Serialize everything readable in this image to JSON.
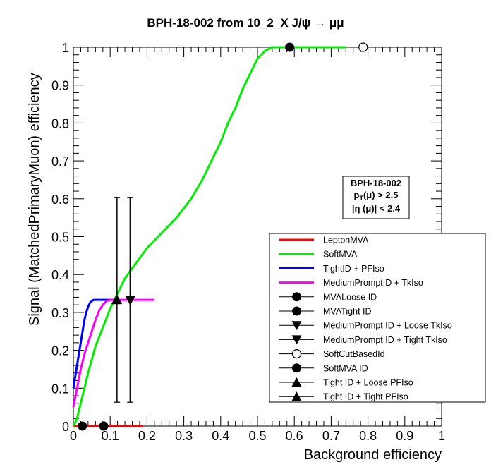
{
  "chart_data": {
    "type": "line",
    "title": "BPH-18-002 from 10_2_X J/ψ → μμ",
    "xlabel": "Background efficiency",
    "ylabel": "Signal (MatchedPrimaryMuon) efficiency",
    "xlim": [
      0,
      1
    ],
    "ylim": [
      0,
      1
    ],
    "xticks": [
      "0",
      "0.1",
      "0.2",
      "0.3",
      "0.4",
      "0.5",
      "0.6",
      "0.7",
      "0.8",
      "0.9",
      "1"
    ],
    "yticks": [
      "0",
      "0.1",
      "0.2",
      "0.3",
      "0.4",
      "0.5",
      "0.6",
      "0.7",
      "0.8",
      "0.9",
      "1"
    ],
    "grid": false,
    "legend_position": "bottom-right",
    "info_box": {
      "line1": "BPH-18-002",
      "line2_main": "p",
      "line2_sub": "T",
      "line2_rest": "(μ) > 2.5",
      "line3": "|η (μ)| < 2.4"
    },
    "series": [
      {
        "name": "LeptonMVA",
        "kind": "line",
        "color": "#ff0000",
        "x": [
          0.0,
          0.02,
          0.05,
          0.1,
          0.15,
          0.19
        ],
        "y": [
          0.0,
          0.0,
          0.0,
          0.0,
          0.0,
          0.0
        ]
      },
      {
        "name": "SoftMVA",
        "kind": "line",
        "color": "#00ee00",
        "x": [
          0.0,
          0.01,
          0.02,
          0.04,
          0.06,
          0.08,
          0.1,
          0.12,
          0.14,
          0.17,
          0.2,
          0.24,
          0.28,
          0.32,
          0.35,
          0.38,
          0.4,
          0.42,
          0.44,
          0.46,
          0.48,
          0.5,
          0.52,
          0.54,
          0.55,
          0.57,
          0.59,
          0.65,
          0.7,
          0.74
        ],
        "y": [
          0.0,
          0.02,
          0.06,
          0.14,
          0.21,
          0.26,
          0.31,
          0.35,
          0.39,
          0.43,
          0.47,
          0.51,
          0.55,
          0.6,
          0.65,
          0.71,
          0.75,
          0.8,
          0.84,
          0.89,
          0.93,
          0.97,
          0.99,
          1.0,
          1.0,
          1.0,
          1.0,
          1.0,
          1.0,
          1.0
        ]
      },
      {
        "name": "TightID + PFIso",
        "kind": "line",
        "color": "#0000ff",
        "x": [
          0.0,
          0.005,
          0.01,
          0.015,
          0.02,
          0.025,
          0.03,
          0.035,
          0.04,
          0.045,
          0.05,
          0.055,
          0.06,
          0.08,
          0.1,
          0.12
        ],
        "y": [
          0.1,
          0.13,
          0.16,
          0.19,
          0.22,
          0.25,
          0.28,
          0.3,
          0.315,
          0.325,
          0.33,
          0.333,
          0.333,
          0.333,
          0.333,
          0.333
        ]
      },
      {
        "name": "MediumPromptID + TkIso",
        "kind": "line",
        "color": "#ff00ff",
        "x": [
          0.0,
          0.01,
          0.02,
          0.03,
          0.04,
          0.05,
          0.06,
          0.07,
          0.08,
          0.09,
          0.1,
          0.12,
          0.15,
          0.2,
          0.22
        ],
        "y": [
          0.05,
          0.1,
          0.15,
          0.19,
          0.22,
          0.25,
          0.28,
          0.305,
          0.32,
          0.33,
          0.333,
          0.333,
          0.333,
          0.333,
          0.333
        ]
      },
      {
        "name": "MVALoose ID",
        "kind": "marker",
        "marker": "circle-filled",
        "points": [
          {
            "x": 0.0245,
            "y": 0.0
          }
        ]
      },
      {
        "name": "MVATight ID",
        "kind": "marker",
        "marker": "circle-filled",
        "points": [
          {
            "x": 0.0825,
            "y": 0.0
          }
        ]
      },
      {
        "name": "MediumPrompt ID + Loose TkIso",
        "kind": "marker",
        "marker": "triangle-down",
        "points": [
          {
            "x": 0.1535,
            "y": 0.333,
            "err": 0.27
          }
        ]
      },
      {
        "name": "MediumPrompt ID + Tight TkIso",
        "kind": "marker",
        "marker": "triangle-down",
        "points": [
          {
            "x": 0.1553,
            "y": 0.333,
            "err": 0.27
          }
        ]
      },
      {
        "name": "SoftCutBasedId",
        "kind": "marker",
        "marker": "circle-open",
        "points": [
          {
            "x": 0.7869,
            "y": 1.0
          }
        ]
      },
      {
        "name": "SoftMVA ID",
        "kind": "marker",
        "marker": "circle-filled",
        "points": [
          {
            "x": 0.5873,
            "y": 1.0
          }
        ]
      },
      {
        "name": "Tight ID + Loose PFIso",
        "kind": "marker",
        "marker": "triangle-up",
        "points": [
          {
            "x": 0.1171,
            "y": 0.333,
            "err": 0.27
          }
        ]
      },
      {
        "name": "Tight ID + Tight PFIso",
        "kind": "marker",
        "marker": "triangle-up",
        "points": [
          {
            "x": 0.119,
            "y": 0.333,
            "err": 0.27
          }
        ]
      }
    ]
  }
}
